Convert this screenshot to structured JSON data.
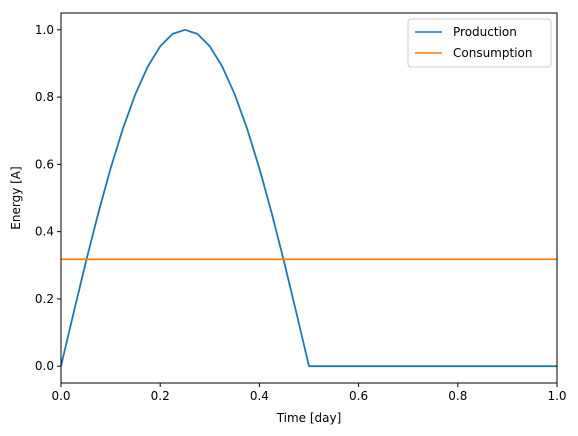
{
  "chart_data": {
    "type": "line",
    "title": "",
    "xlabel": "Time [day]",
    "ylabel": "Energy [A]",
    "xlim": [
      0.0,
      1.0
    ],
    "ylim": [
      -0.05,
      1.05
    ],
    "x_ticks": [
      0.0,
      0.2,
      0.4,
      0.6,
      0.8,
      1.0
    ],
    "x_tick_labels": [
      "0.0",
      "0.2",
      "0.4",
      "0.6",
      "0.8",
      "1.0"
    ],
    "y_ticks": [
      0.0,
      0.2,
      0.4,
      0.6,
      0.8,
      1.0
    ],
    "y_tick_labels": [
      "0.0",
      "0.2",
      "0.4",
      "0.6",
      "0.8",
      "1.0"
    ],
    "grid": false,
    "legend_position": "top-right",
    "series": [
      {
        "name": "Production",
        "color": "#1f77b4",
        "x": [
          0.0,
          0.025,
          0.05,
          0.075,
          0.1,
          0.125,
          0.15,
          0.175,
          0.2,
          0.225,
          0.25,
          0.275,
          0.3,
          0.325,
          0.35,
          0.375,
          0.4,
          0.425,
          0.45,
          0.475,
          0.5,
          0.55,
          0.6,
          0.65,
          0.7,
          0.75,
          0.8,
          0.85,
          0.9,
          0.95,
          1.0
        ],
        "y": [
          0.0,
          0.156,
          0.309,
          0.454,
          0.588,
          0.707,
          0.809,
          0.891,
          0.951,
          0.988,
          1.0,
          0.988,
          0.951,
          0.891,
          0.809,
          0.707,
          0.588,
          0.454,
          0.309,
          0.156,
          0.0,
          0.0,
          0.0,
          0.0,
          0.0,
          0.0,
          0.0,
          0.0,
          0.0,
          0.0,
          0.0
        ]
      },
      {
        "name": "Consumption",
        "color": "#ff7f0e",
        "x": [
          0.0,
          1.0
        ],
        "y": [
          0.318,
          0.318
        ]
      }
    ]
  }
}
